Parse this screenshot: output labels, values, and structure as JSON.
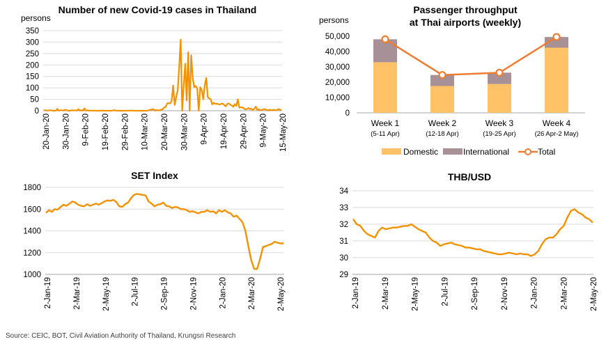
{
  "source": "Source: CEIC, BOT, Civil Aviation Authority of Thailand, Krungsri Research",
  "colors": {
    "orange": "#f39200",
    "domestic": "#ffc266",
    "international": "#a79197",
    "total": "#ee7d31",
    "grid": "#d9d9d9"
  },
  "chart_data": [
    {
      "id": "covid",
      "type": "line",
      "title": "Number of new Covid-19 cases in Thailand",
      "ylabel": "persons",
      "ylim": [
        0,
        350
      ],
      "yticks": [
        "0",
        "50",
        "100",
        "150",
        "200",
        "250",
        "300",
        "350"
      ],
      "xticks": [
        "20-Jan-20",
        "30-Jan-20",
        "9-Feb-20",
        "19-Feb-20",
        "29-Feb-20",
        "10-Mar-20",
        "20-Mar-20",
        "30-Mar-20",
        "9-Apr-20",
        "19-Apr-20",
        "29-Apr-20",
        "9-May-20",
        "15-May-20"
      ],
      "grid": true,
      "series": [
        {
          "x_start": "20-Jan-20",
          "values": [
            2,
            2,
            1,
            1,
            2,
            2,
            0,
            0,
            0,
            8,
            0,
            2,
            2,
            1,
            4,
            3,
            0,
            0,
            1,
            2,
            1,
            2,
            0,
            7,
            0,
            3,
            0,
            10,
            0,
            2,
            0,
            1,
            0,
            1,
            0,
            0,
            0,
            0,
            0,
            1,
            0,
            0,
            0,
            0,
            0,
            0,
            1,
            3,
            0,
            0,
            0,
            0,
            0,
            0,
            0,
            0,
            0,
            1,
            0,
            1,
            0,
            0,
            0,
            0,
            0,
            0,
            0,
            0,
            0,
            0,
            2,
            5,
            5,
            7,
            0,
            4,
            1,
            2,
            5,
            6,
            14,
            16,
            32,
            33,
            32,
            43,
            110,
            25,
            60,
            89,
            188,
            311,
            0,
            107,
            205,
            45,
            255,
            0,
            243,
            143,
            103,
            108,
            98,
            0,
            103,
            90,
            50,
            110,
            143,
            60,
            54,
            50,
            28,
            34,
            30,
            30,
            29,
            27,
            30,
            31,
            25,
            19,
            30,
            32,
            26,
            23,
            17,
            29,
            21,
            50,
            13,
            15,
            15,
            10,
            6,
            7,
            12,
            7,
            9,
            2,
            9,
            18,
            3,
            6,
            3,
            3,
            6,
            7,
            4,
            1,
            5,
            2,
            3,
            4,
            2,
            3,
            7,
            5,
            2
          ]
        }
      ]
    },
    {
      "id": "passenger",
      "type": "bar",
      "title": "Passenger throughput",
      "title2": "at Thai airports (weekly)",
      "ylabel": "persons",
      "ylim": [
        0,
        50000
      ],
      "yticks": [
        "0",
        "10,000",
        "20,000",
        "30,000",
        "40,000",
        "50,000"
      ],
      "categories": [
        "Week 1",
        "Week 2",
        "Week 3",
        "Week 4"
      ],
      "subcategories": [
        "(5-11 Apr)",
        "(12-18 Apr)",
        "(19-25 Apr)",
        "(26 Apr-2 May)"
      ],
      "series": [
        {
          "name": "Domestic",
          "values": [
            33000,
            17500,
            18800,
            42500
          ]
        },
        {
          "name": "International",
          "values": [
            15000,
            7200,
            7400,
            7000
          ]
        },
        {
          "name": "Total",
          "values": [
            48000,
            24700,
            26200,
            49500
          ]
        }
      ],
      "legend": "bottom"
    },
    {
      "id": "set",
      "type": "line",
      "title": "SET Index",
      "ylim": [
        1000,
        1800
      ],
      "yticks": [
        "1000",
        "1200",
        "1400",
        "1600",
        "1800"
      ],
      "xticks": [
        "2-Jan-19",
        "2-Mar-19",
        "2-May-19",
        "2-Jul-19",
        "2-Sep-19",
        "2-Nov-19",
        "2-Jan-20",
        "2-Mar-20",
        "2-May-20"
      ],
      "grid": true,
      "series": [
        {
          "values": [
            1565,
            1590,
            1575,
            1600,
            1595,
            1620,
            1640,
            1630,
            1650,
            1670,
            1660,
            1640,
            1630,
            1625,
            1645,
            1630,
            1640,
            1650,
            1640,
            1655,
            1670,
            1680,
            1675,
            1685,
            1665,
            1625,
            1620,
            1645,
            1660,
            1700,
            1730,
            1740,
            1735,
            1730,
            1725,
            1670,
            1650,
            1625,
            1640,
            1645,
            1660,
            1630,
            1625,
            1610,
            1620,
            1615,
            1600,
            1600,
            1590,
            1575,
            1580,
            1570,
            1560,
            1575,
            1575,
            1590,
            1575,
            1580,
            1560,
            1590,
            1575,
            1590,
            1570,
            1560,
            1530,
            1540,
            1510,
            1480,
            1400,
            1260,
            1130,
            1050,
            1050,
            1140,
            1250,
            1260,
            1270,
            1280,
            1300,
            1290,
            1285,
            1285
          ]
        }
      ]
    },
    {
      "id": "thb",
      "type": "line",
      "title": "THB/USD",
      "ylim": [
        29,
        34
      ],
      "yticks": [
        "29",
        "30",
        "31",
        "32",
        "33",
        "34"
      ],
      "xticks": [
        "2-Jan-19",
        "2-Mar-19",
        "2-May-19",
        "2-Jul-19",
        "2-Sep-19",
        "2-Nov-19",
        "2-Jan-20",
        "2-Mar-20",
        "2-May-20"
      ],
      "grid": true,
      "series": [
        {
          "values": [
            32.3,
            32.0,
            31.9,
            31.6,
            31.4,
            31.3,
            31.2,
            31.6,
            31.8,
            31.7,
            31.75,
            31.8,
            31.8,
            31.85,
            31.9,
            31.9,
            32.0,
            31.85,
            31.7,
            31.6,
            31.5,
            31.2,
            31.0,
            30.9,
            30.7,
            30.8,
            30.85,
            30.9,
            30.8,
            30.75,
            30.7,
            30.6,
            30.6,
            30.55,
            30.5,
            30.5,
            30.4,
            30.35,
            30.3,
            30.25,
            30.2,
            30.2,
            30.25,
            30.3,
            30.25,
            30.2,
            30.25,
            30.2,
            30.2,
            30.1,
            30.2,
            30.4,
            30.8,
            31.1,
            31.2,
            31.2,
            31.4,
            31.7,
            31.9,
            32.4,
            32.8,
            32.9,
            32.7,
            32.6,
            32.4,
            32.3,
            32.1
          ]
        }
      ]
    }
  ]
}
